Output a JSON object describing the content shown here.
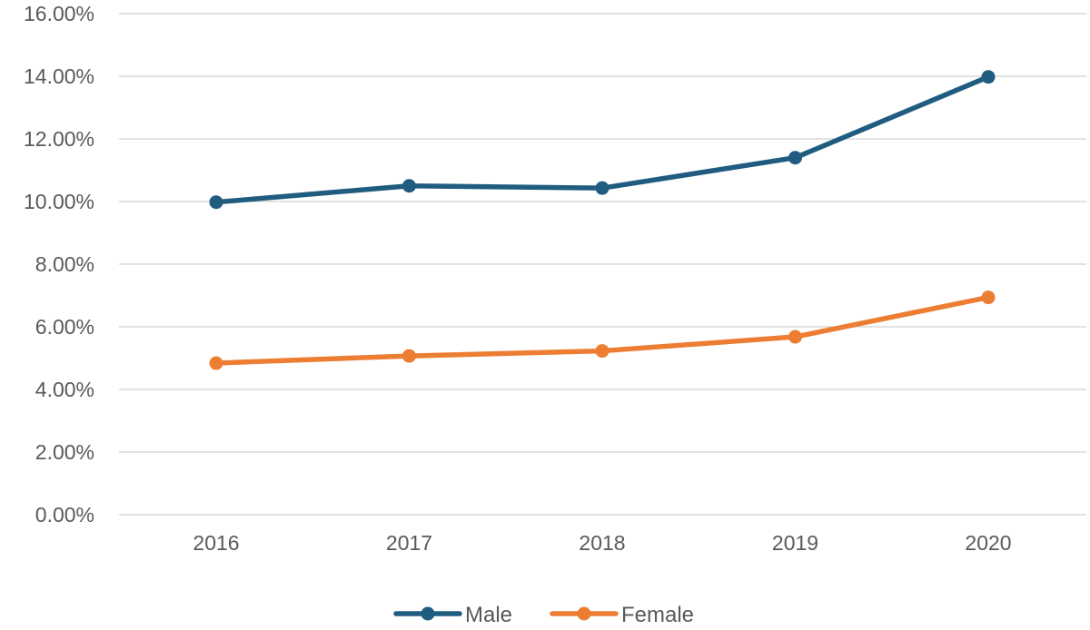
{
  "chart_data": {
    "type": "line",
    "title": "",
    "xlabel": "",
    "ylabel": "",
    "categories": [
      "2016",
      "2017",
      "2018",
      "2019",
      "2020"
    ],
    "ylim": [
      0,
      0.16
    ],
    "yticks": [
      0,
      0.02,
      0.04,
      0.06,
      0.08,
      0.1,
      0.12,
      0.14,
      0.16
    ],
    "ytick_labels": [
      "0.00%",
      "2.00%",
      "4.00%",
      "6.00%",
      "8.00%",
      "10.00%",
      "12.00%",
      "14.00%",
      "16.00%"
    ],
    "grid": true,
    "legend_position": "bottom",
    "series": [
      {
        "name": "Male",
        "color": "#1f5c80",
        "values": [
          0.0998,
          0.105,
          0.1043,
          0.114,
          0.1398
        ]
      },
      {
        "name": "Female",
        "color": "#ec7d32",
        "values": [
          0.0484,
          0.0507,
          0.0523,
          0.0568,
          0.0694
        ]
      }
    ]
  }
}
